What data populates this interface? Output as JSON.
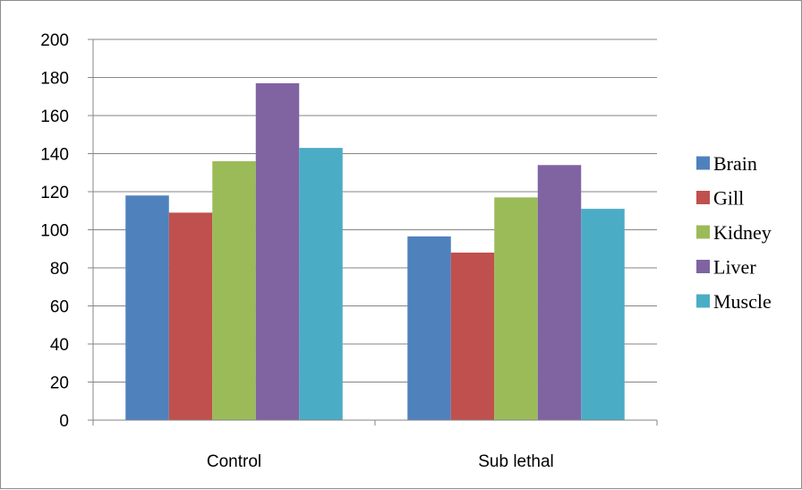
{
  "chart_data": {
    "type": "bar",
    "title": "",
    "xlabel": "",
    "ylabel": "",
    "categories": [
      "Control",
      "Sub lethal"
    ],
    "series": [
      {
        "name": "Brain",
        "values": [
          118,
          96.5
        ],
        "color": "#4F81BD"
      },
      {
        "name": "Gill",
        "values": [
          109,
          88
        ],
        "color": "#C0504D"
      },
      {
        "name": "Kidney",
        "values": [
          136,
          117
        ],
        "color": "#9BBB59"
      },
      {
        "name": "Liver",
        "values": [
          177,
          134
        ],
        "color": "#8064A2"
      },
      {
        "name": "Muscle",
        "values": [
          143,
          111
        ],
        "color": "#4BACC6"
      }
    ],
    "ylim": [
      0,
      200
    ],
    "yticks": [
      "0",
      "20",
      "40",
      "60",
      "80",
      "100",
      "120",
      "140",
      "160",
      "180",
      "200"
    ],
    "grid": true,
    "legend_position": "right"
  }
}
